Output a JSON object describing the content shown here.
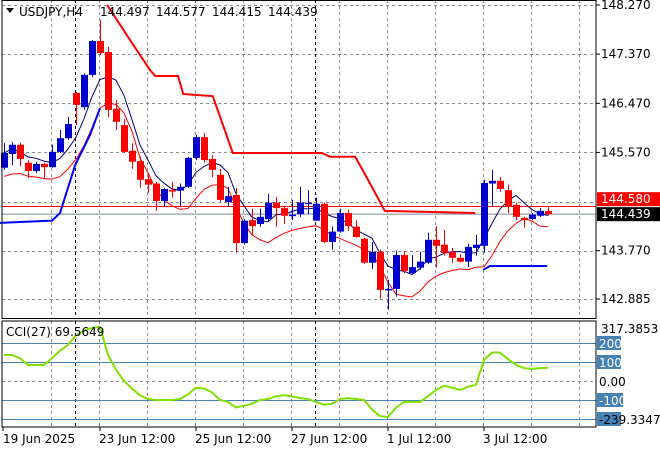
{
  "header": {
    "symbol": "USDJPY,H4",
    "open": "144.497",
    "high": "144.577",
    "low": "144.415",
    "close": "144.439"
  },
  "price_axis": {
    "labels": [
      "148.270",
      "147.370",
      "146.470",
      "145.570",
      "143.770",
      "142.885"
    ],
    "ask_label": "144.580",
    "bid_label": "144.439"
  },
  "cci": {
    "title": "CCI(27) 69.5649",
    "max_label": "317.3853",
    "min_label": "-239.3347",
    "level_labels": [
      "200",
      "100",
      "0.00",
      "-100"
    ]
  },
  "time_axis": {
    "labels": [
      "19 Jun 2025",
      "23 Jun 12:00",
      "25 Jun 12:00",
      "27 Jun 12:00",
      "1 Jul 12:00",
      "3 Jul 12:00"
    ]
  },
  "colors": {
    "bull": "#0000cc",
    "bear": "#ff0000",
    "cci_line": "#80e000",
    "level_line": "#4682b4",
    "grid": "#8c8c8c",
    "ask_line": "#ff0000",
    "bid_line": "#7a8a99"
  },
  "chart_data": {
    "type": "candlestick",
    "symbol": "USDJPY",
    "timeframe": "H4",
    "ylim": [
      142.885,
      148.27
    ],
    "price_grid": [
      148.27,
      147.37,
      146.47,
      145.57,
      144.67,
      143.77,
      142.885
    ],
    "ask": 144.58,
    "bid": 144.439,
    "ohlc": [
      [
        145.29,
        145.74,
        145.25,
        145.56
      ],
      [
        145.54,
        145.76,
        145.34,
        145.71
      ],
      [
        145.71,
        145.74,
        145.32,
        145.45
      ],
      [
        145.38,
        145.43,
        145.1,
        145.23
      ],
      [
        145.23,
        145.4,
        145.19,
        145.36
      ],
      [
        145.36,
        145.38,
        145.1,
        145.3
      ],
      [
        145.3,
        145.71,
        145.29,
        145.58
      ],
      [
        145.58,
        145.98,
        145.56,
        145.83
      ],
      [
        145.83,
        146.22,
        145.8,
        146.09
      ],
      [
        146.66,
        146.68,
        146.07,
        146.44
      ],
      [
        146.4,
        147.02,
        146.35,
        146.99
      ],
      [
        146.99,
        147.63,
        146.95,
        147.61
      ],
      [
        147.61,
        148.0,
        147.35,
        147.39
      ],
      [
        147.41,
        147.5,
        146.22,
        146.35
      ],
      [
        146.37,
        146.53,
        145.98,
        146.13
      ],
      [
        146.07,
        146.18,
        145.56,
        145.58
      ],
      [
        145.6,
        145.74,
        145.27,
        145.4
      ],
      [
        145.41,
        145.49,
        144.92,
        145.07
      ],
      [
        145.08,
        145.19,
        144.83,
        144.98
      ],
      [
        145.0,
        145.03,
        144.5,
        144.68
      ],
      [
        144.68,
        144.92,
        144.57,
        144.9
      ],
      [
        144.88,
        145.03,
        144.74,
        144.87
      ],
      [
        144.87,
        145.0,
        144.59,
        144.94
      ],
      [
        144.94,
        145.49,
        144.92,
        145.47
      ],
      [
        145.47,
        145.89,
        145.43,
        145.85
      ],
      [
        145.85,
        145.93,
        145.38,
        145.43
      ],
      [
        145.45,
        145.52,
        145.12,
        145.25
      ],
      [
        145.16,
        145.27,
        144.66,
        144.7
      ],
      [
        144.66,
        144.94,
        144.57,
        144.77
      ],
      [
        144.79,
        144.92,
        143.73,
        143.91
      ],
      [
        143.91,
        144.35,
        143.88,
        144.32
      ],
      [
        144.33,
        144.54,
        144.06,
        144.22
      ],
      [
        144.26,
        144.54,
        144.21,
        144.39
      ],
      [
        144.35,
        144.81,
        144.3,
        144.65
      ],
      [
        144.65,
        144.76,
        144.21,
        144.55
      ],
      [
        144.55,
        144.59,
        144.26,
        144.41
      ],
      [
        144.43,
        144.7,
        144.33,
        144.43
      ],
      [
        144.44,
        144.94,
        144.39,
        144.65
      ],
      [
        144.65,
        144.88,
        144.44,
        144.65
      ],
      [
        144.32,
        144.74,
        144.32,
        144.63
      ],
      [
        144.63,
        144.65,
        143.91,
        143.93
      ],
      [
        143.93,
        144.21,
        143.79,
        144.12
      ],
      [
        144.12,
        144.54,
        144.1,
        144.46
      ],
      [
        144.46,
        144.52,
        144.13,
        144.22
      ],
      [
        144.21,
        144.33,
        144.01,
        144.02
      ],
      [
        143.99,
        144.01,
        143.53,
        143.55
      ],
      [
        143.55,
        143.93,
        143.44,
        143.75
      ],
      [
        143.75,
        143.79,
        142.89,
        143.05
      ],
      [
        143.07,
        143.24,
        142.69,
        143.07
      ],
      [
        143.07,
        143.77,
        142.93,
        143.69
      ],
      [
        143.69,
        143.77,
        143.36,
        143.4
      ],
      [
        143.36,
        143.69,
        143.35,
        143.47
      ],
      [
        143.46,
        143.75,
        143.42,
        143.57
      ],
      [
        143.55,
        144.1,
        143.53,
        143.97
      ],
      [
        143.97,
        144.22,
        143.46,
        143.86
      ],
      [
        143.88,
        144.15,
        143.68,
        143.73
      ],
      [
        143.75,
        143.82,
        143.55,
        143.64
      ],
      [
        143.64,
        143.71,
        143.55,
        143.57
      ],
      [
        143.57,
        143.9,
        143.47,
        143.84
      ],
      [
        143.82,
        144.06,
        143.68,
        143.88
      ],
      [
        143.86,
        145.07,
        143.73,
        145.01
      ],
      [
        145.0,
        145.25,
        144.57,
        145.05
      ],
      [
        145.05,
        145.12,
        144.85,
        144.9
      ],
      [
        144.88,
        144.98,
        144.46,
        144.57
      ],
      [
        144.61,
        144.65,
        144.33,
        144.39
      ],
      [
        144.37,
        144.39,
        144.19,
        144.33
      ],
      [
        144.35,
        144.46,
        144.33,
        144.43
      ],
      [
        144.41,
        144.55,
        144.39,
        144.5
      ],
      [
        144.497,
        144.577,
        144.415,
        144.439
      ]
    ],
    "resistance_step": [
      [
        12.9,
        148.27
      ],
      [
        15.75,
        147.63
      ],
      [
        18.25,
        147.08
      ],
      [
        18.9,
        146.97
      ],
      [
        21.75,
        146.97
      ],
      [
        22.4,
        146.64
      ],
      [
        26.1,
        146.6
      ],
      [
        28.6,
        145.56
      ],
      [
        39.75,
        145.56
      ],
      [
        40.75,
        145.49
      ],
      [
        43.9,
        145.49
      ],
      [
        45.5,
        145.07
      ],
      [
        47.6,
        144.5
      ],
      [
        58.9,
        144.46
      ]
    ],
    "support_step_1": [
      [
        -0.5,
        144.28
      ],
      [
        6,
        144.32
      ],
      [
        7,
        144.46
      ],
      [
        8.9,
        145.34
      ],
      [
        10.75,
        145.89
      ],
      [
        12,
        146.38
      ]
    ],
    "support_step_2": [
      [
        59.9,
        143.42
      ],
      [
        60.75,
        143.49
      ],
      [
        67.9,
        143.49
      ]
    ],
    "cci_period": 27,
    "cci_ylim": [
      -239.3347,
      317.3853
    ],
    "cci_levels": [
      200,
      100,
      0,
      -100,
      -200
    ],
    "cci": [
      137,
      137,
      120,
      84,
      84,
      84,
      120,
      160,
      190,
      240,
      265,
      280,
      285,
      137,
      60,
      0,
      -40,
      -75,
      -95,
      -100,
      -100,
      -100,
      -95,
      -70,
      -35,
      -40,
      -60,
      -100,
      -110,
      -140,
      -130,
      -120,
      -100,
      -95,
      -80,
      -75,
      -80,
      -90,
      -95,
      -110,
      -125,
      -120,
      -95,
      -90,
      -95,
      -100,
      -150,
      -185,
      -190,
      -140,
      -110,
      -110,
      -110,
      -80,
      -47,
      -25,
      -35,
      -47,
      -30,
      -20,
      110,
      150,
      150,
      115,
      85,
      68,
      63,
      68,
      69.5649
    ],
    "week_separators": [
      8.9,
      38.9
    ]
  }
}
